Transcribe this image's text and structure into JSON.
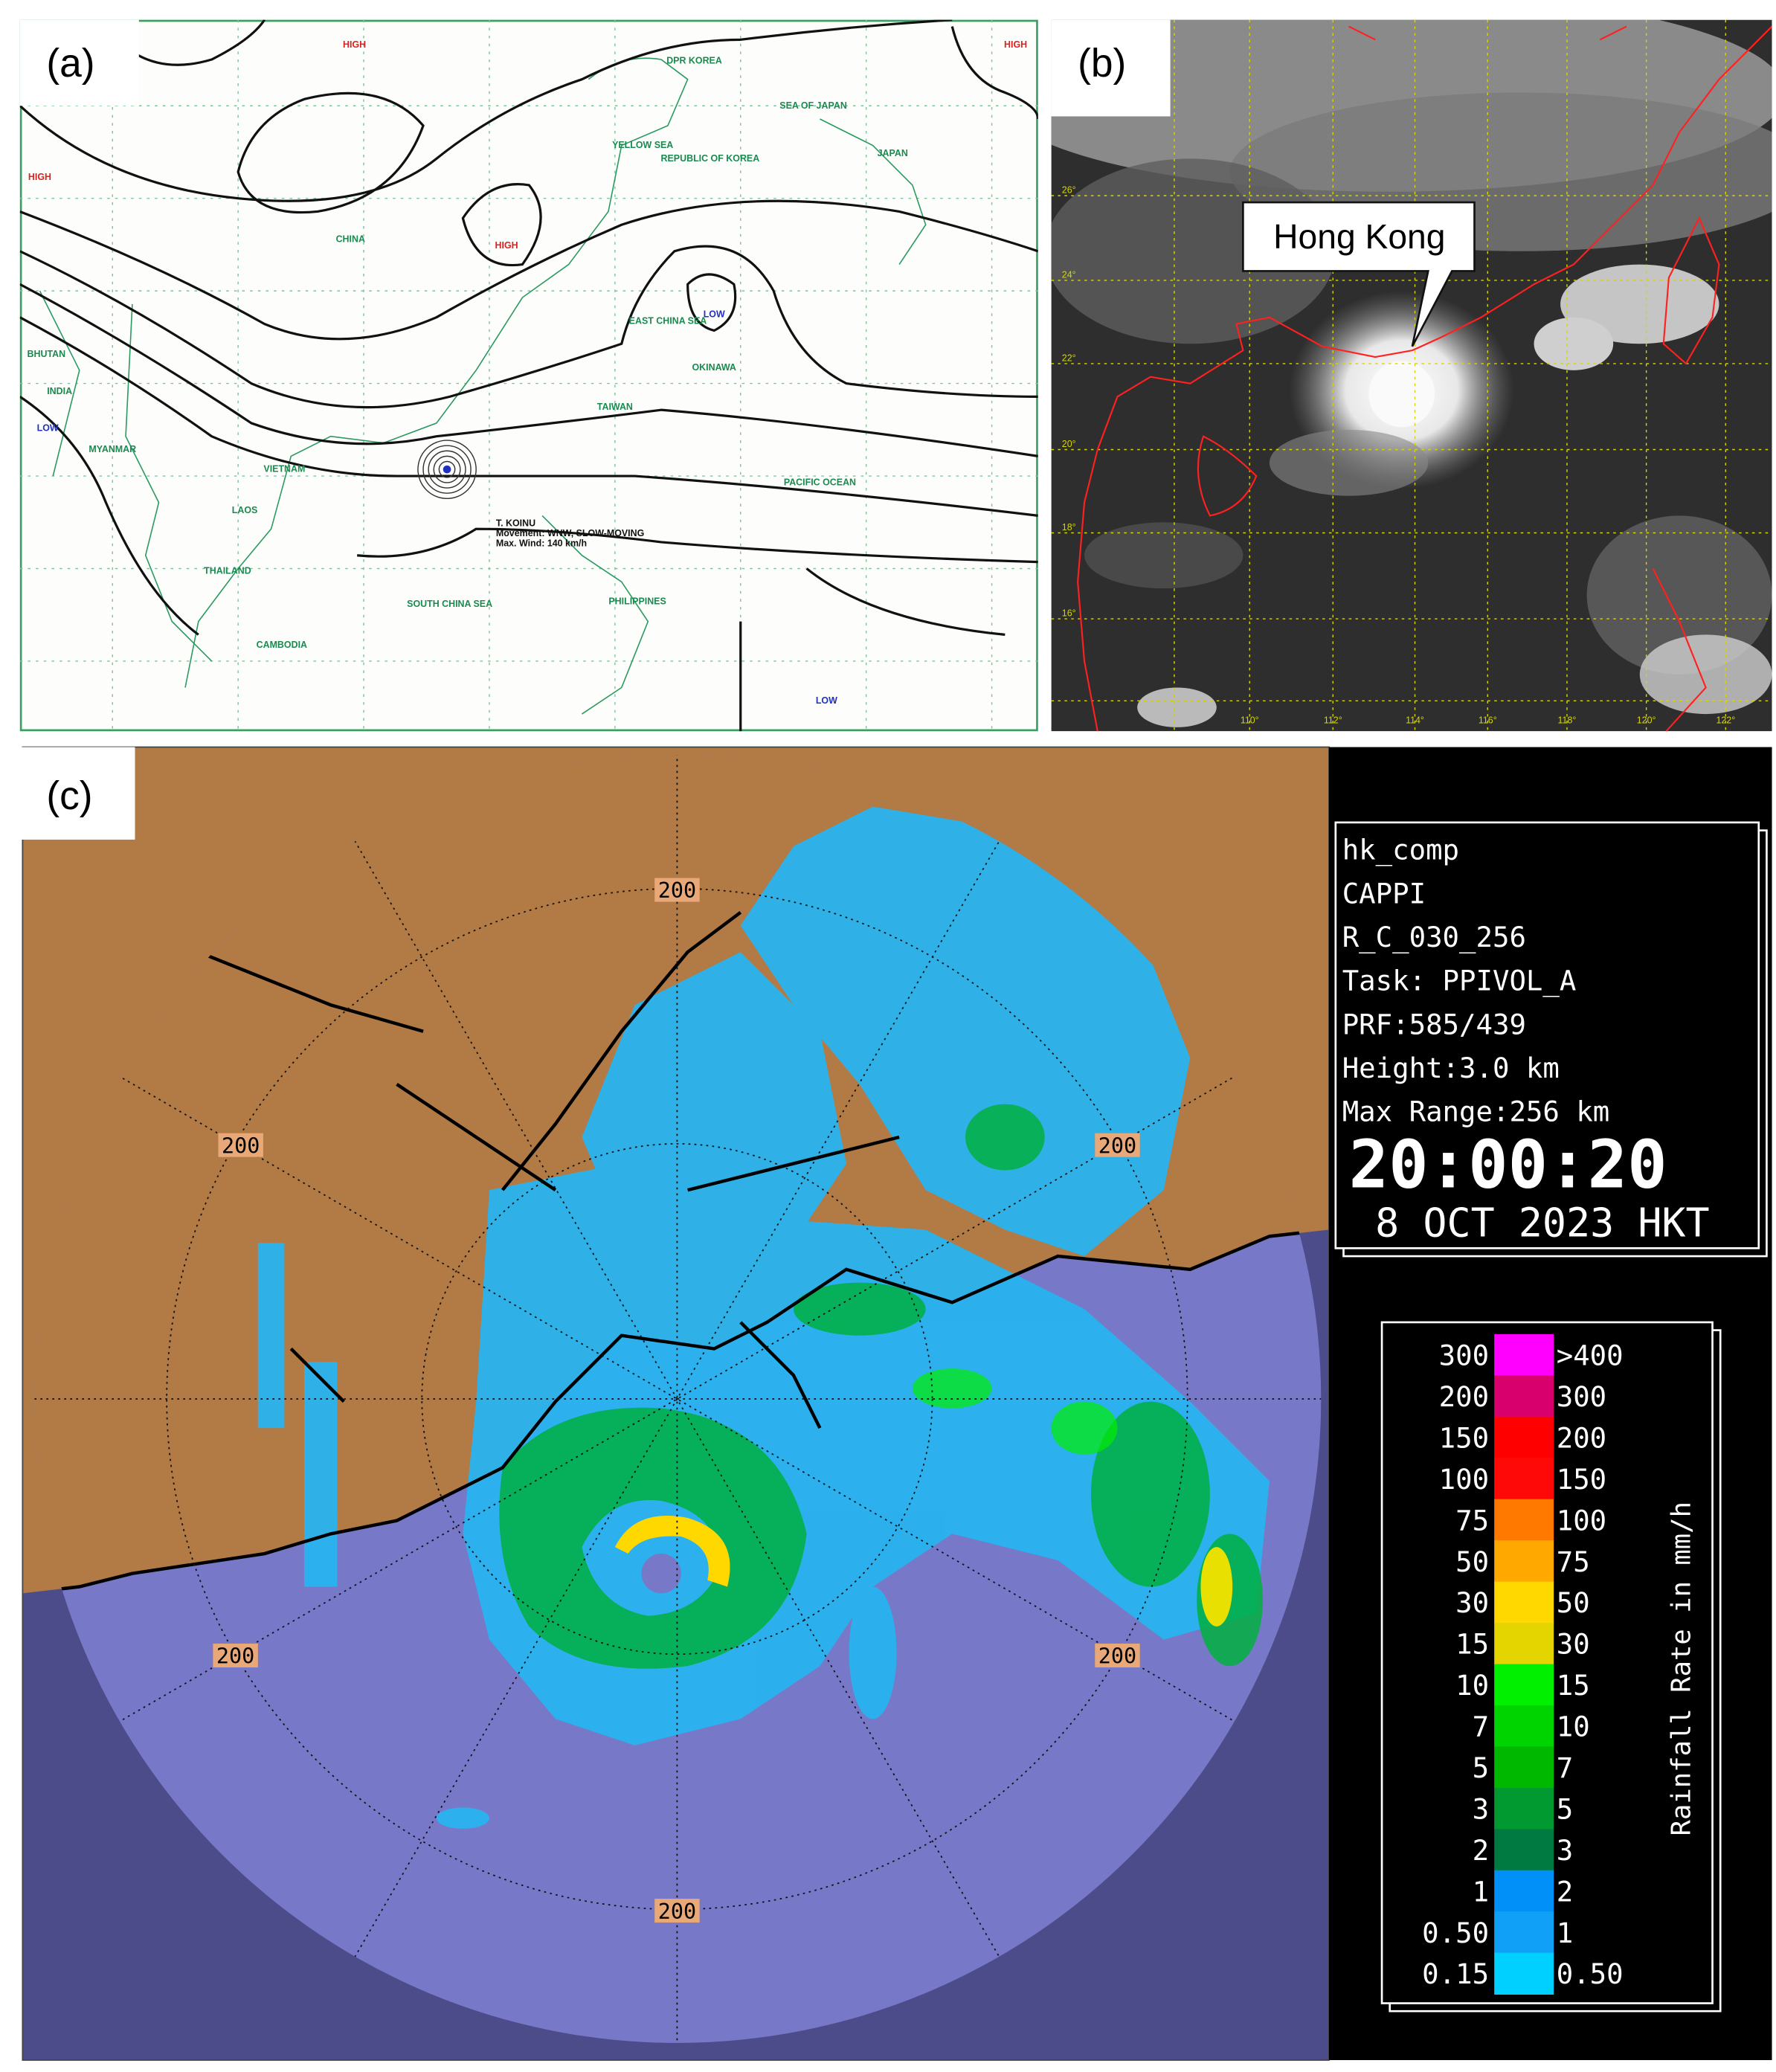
{
  "panel_a": {
    "label": "(a)",
    "places": [
      "HIGH",
      "HIGH",
      "HIGH",
      "HIGH",
      "LOW",
      "LOW",
      "LOW",
      "CHINA",
      "MYANMAR",
      "INDIA",
      "BHUTAN",
      "VIETNAM",
      "LAOS",
      "THAILAND",
      "CAMBODIA",
      "PHILIPPINES",
      "DPR KOREA",
      "REPUBLIC OF KOREA",
      "JAPAN",
      "SEA OF JAPAN",
      "YELLOW SEA",
      "EAST CHINA SEA",
      "PACIFIC OCEAN",
      "SOUTH CHINA SEA",
      "TAIWAN",
      "OKINAWA"
    ],
    "typhoon": [
      "T. KOINU",
      "Movement: WNW, SLOW-MOVING",
      "Max. Wind: 140 km/h"
    ]
  },
  "panel_b": {
    "label": "(b)",
    "callout": "Hong Kong",
    "lat_labels": [
      "26°",
      "24°",
      "22°",
      "20°",
      "18°",
      "16°"
    ],
    "lon_labels": [
      "110°",
      "112°",
      "114°",
      "116°",
      "118°",
      "120°",
      "122°"
    ]
  },
  "panel_c": {
    "label": "(c)",
    "range_labels": [
      "200",
      "200",
      "200",
      "200",
      "200",
      "200"
    ],
    "info": [
      "hk_comp",
      "CAPPI",
      "R_C_030_256",
      "Task: PPIVOL_A",
      "PRF:585/439",
      "Height:3.0 km",
      "Max Range:256 km"
    ],
    "time": "20:00:20",
    "date": "8 OCT 2023 HKT",
    "legend": {
      "title": "Rainfall Rate in mm/h",
      "rows": [
        {
          "left": "300",
          "right": ">400",
          "color": "#ff00ff"
        },
        {
          "left": "200",
          "right": "300",
          "color": "#d8006c"
        },
        {
          "left": "150",
          "right": "200",
          "color": "#ff0000"
        },
        {
          "left": "100",
          "right": "150",
          "color": "#ff0808"
        },
        {
          "left": "75",
          "right": "100",
          "color": "#ff7800"
        },
        {
          "left": "50",
          "right": "75",
          "color": "#ffa800"
        },
        {
          "left": "30",
          "right": "50",
          "color": "#ffd800"
        },
        {
          "left": "15",
          "right": "30",
          "color": "#e4d400"
        },
        {
          "left": "10",
          "right": "15",
          "color": "#00f000"
        },
        {
          "left": "7",
          "right": "10",
          "color": "#00d400"
        },
        {
          "left": "5",
          "right": "7",
          "color": "#00b800"
        },
        {
          "left": "3",
          "right": "5",
          "color": "#009a30"
        },
        {
          "left": "2",
          "right": "3",
          "color": "#007a40"
        },
        {
          "left": "1",
          "right": "2",
          "color": "#0090f8"
        },
        {
          "left": "0.50",
          "right": "1",
          "color": "#10a0f8"
        },
        {
          "left": "0.15",
          "right": "0.50",
          "color": "#00d0ff"
        }
      ]
    }
  }
}
